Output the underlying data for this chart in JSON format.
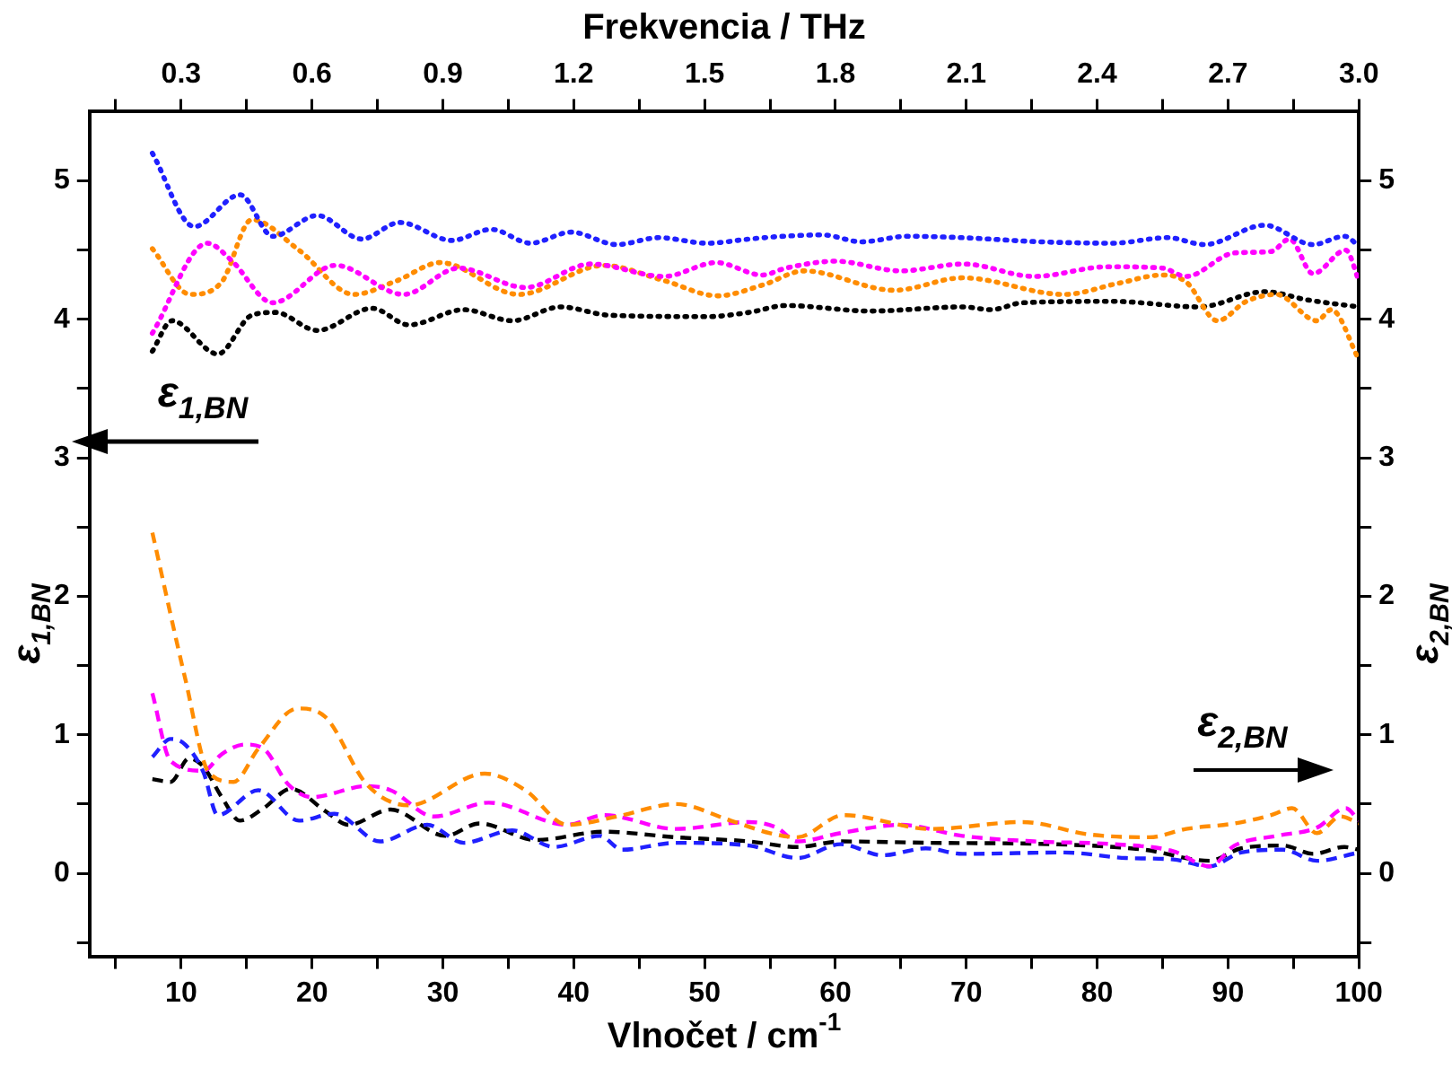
{
  "chart_data": {
    "type": "line",
    "xlabel": "Vlnočet / cm$^{-1}$",
    "x2label": "Frekvencia / THz",
    "ylabel": "ε$_{1,BN}$",
    "y2label": "ε$_{2,BN}$",
    "annotations": [
      "ε$_{1,BN}$",
      "ε$_{2,BN}$"
    ],
    "xlim": [
      3,
      100
    ],
    "xticks": [
      {
        "value": 5,
        "label": null
      },
      10,
      {
        "value": 15,
        "label": null
      },
      20,
      {
        "value": 25,
        "label": null
      },
      30,
      {
        "value": 35,
        "label": null
      },
      40,
      {
        "value": 45,
        "label": null
      },
      50,
      {
        "value": 55,
        "label": null
      },
      60,
      {
        "value": 65,
        "label": null
      },
      70,
      {
        "value": 75,
        "label": null
      },
      80,
      {
        "value": 85,
        "label": null
      },
      90,
      {
        "value": 95,
        "label": null
      },
      100
    ],
    "x2lim": [
      0.09,
      3.0
    ],
    "x2ticks": [
      {
        "value": 0.15,
        "label": null
      },
      0.3,
      {
        "value": 0.45,
        "label": null
      },
      0.6,
      {
        "value": 0.75,
        "label": null
      },
      0.9,
      {
        "value": 1.05,
        "label": null
      },
      1.2,
      {
        "value": 1.35,
        "label": null
      },
      1.5,
      {
        "value": 1.65,
        "label": null
      },
      1.8,
      {
        "value": 1.95,
        "label": null
      },
      2.1,
      {
        "value": 2.25,
        "label": null
      },
      2.4,
      {
        "value": 2.55,
        "label": null
      },
      2.7,
      {
        "value": 2.85,
        "label": null
      },
      {
        "value": 3,
        "label": "3.0"
      }
    ],
    "ylim": [
      -0.6,
      5.5
    ],
    "yticks": [
      {
        "value": -0.5,
        "label": null
      },
      0,
      {
        "value": 0.5,
        "label": null
      },
      1,
      {
        "value": 1.5,
        "label": null
      },
      2,
      {
        "value": 2.5,
        "label": null
      },
      3,
      {
        "value": 3.5,
        "label": null
      },
      4,
      {
        "value": 4.5,
        "label": null
      },
      5
    ],
    "y2lim": [
      -0.6,
      5.5
    ],
    "y2ticks": [
      {
        "value": -0.5,
        "label": null
      },
      0,
      {
        "value": 0.5,
        "label": null
      },
      1,
      {
        "value": 1.5,
        "label": null
      },
      2,
      {
        "value": 2.5,
        "label": null
      },
      3,
      {
        "value": 3.5,
        "label": null
      },
      4,
      {
        "value": 4.5,
        "label": null
      },
      5
    ],
    "grid": false,
    "legend": false,
    "marker": "none",
    "series": [
      {
        "color": "#2020ff",
        "line_style": "dotted",
        "x": [
          7.8,
          11,
          14.5,
          17,
          20.4,
          23.8,
          26.7,
          30.7,
          33.7,
          36.7,
          39.8,
          43.3,
          46.5,
          50.2,
          53.4,
          56,
          59,
          62,
          65.5,
          69.7,
          75.7,
          81.2,
          85.4,
          88.2,
          92.8,
          96.5,
          98.9,
          100
        ],
        "values": [
          5.2,
          4.67,
          4.9,
          4.6,
          4.75,
          4.58,
          4.7,
          4.57,
          4.65,
          4.55,
          4.63,
          4.54,
          4.59,
          4.55,
          4.58,
          4.6,
          4.61,
          4.56,
          4.6,
          4.59,
          4.56,
          4.55,
          4.59,
          4.54,
          4.68,
          4.54,
          4.6,
          4.53
        ]
      },
      {
        "color": "#ff00ff",
        "line_style": "dotted",
        "x": [
          7.8,
          12,
          13.8,
          17,
          21.8,
          27,
          31.2,
          36.3,
          41.3,
          46.9,
          50.9,
          54.4,
          56.2,
          60,
          65,
          69.8,
          75.2,
          80.8,
          85,
          86.8,
          90.5,
          93.3,
          94.7,
          96.5,
          99,
          100
        ],
        "values": [
          3.9,
          4.55,
          4.43,
          4.12,
          4.39,
          4.18,
          4.37,
          4.23,
          4.4,
          4.31,
          4.41,
          4.32,
          4.37,
          4.42,
          4.35,
          4.4,
          4.31,
          4.38,
          4.37,
          4.31,
          4.48,
          4.49,
          4.58,
          4.33,
          4.5,
          4.28
        ]
      },
      {
        "color": "#ff8c00",
        "line_style": "dotted",
        "x": [
          7.8,
          10.7,
          13.1,
          15.4,
          19,
          23.2,
          26.5,
          29.8,
          35.8,
          42.3,
          46.9,
          51,
          54.5,
          57.6,
          64.5,
          69.7,
          77.5,
          81.6,
          85,
          86.8,
          89.2,
          91.4,
          93.7,
          96.8,
          97.9,
          100
        ],
        "values": [
          4.51,
          4.18,
          4.27,
          4.72,
          4.5,
          4.18,
          4.28,
          4.41,
          4.18,
          4.39,
          4.28,
          4.17,
          4.25,
          4.35,
          4.21,
          4.3,
          4.18,
          4.26,
          4.32,
          4.27,
          3.99,
          4.13,
          4.18,
          3.99,
          4.07,
          3.71
        ]
      },
      {
        "color": "#000000",
        "line_style": "dotted",
        "x": [
          7.8,
          9.3,
          12.8,
          15.4,
          17.2,
          20.4,
          24.6,
          27.4,
          31.6,
          35.3,
          39,
          42.7,
          50.2,
          53.4,
          56.2,
          62.7,
          69.7,
          71.9,
          74.3,
          81.2,
          87.8,
          92.8,
          96.1,
          100
        ],
        "values": [
          3.77,
          3.99,
          3.75,
          4.03,
          4.05,
          3.92,
          4.08,
          3.96,
          4.07,
          3.99,
          4.09,
          4.03,
          4.02,
          4.05,
          4.1,
          4.06,
          4.09,
          4.07,
          4.12,
          4.13,
          4.09,
          4.2,
          4.14,
          4.09
        ]
      },
      {
        "color": "#ff8c00",
        "line_style": "dashed",
        "axis": "y2",
        "x": [
          7.8,
          10.3,
          12.1,
          14,
          15.9,
          18.9,
          21,
          24.2,
          27.4,
          33.2,
          36.3,
          39.5,
          43.3,
          47.8,
          52,
          55,
          57.1,
          60.6,
          67.3,
          74.3,
          79.4,
          84,
          86.8,
          90.5,
          93.3,
          94.9,
          96.8,
          98.6,
          100
        ],
        "values": [
          2.46,
          1.41,
          0.73,
          0.66,
          0.9,
          1.19,
          1.13,
          0.64,
          0.49,
          0.72,
          0.6,
          0.35,
          0.41,
          0.5,
          0.38,
          0.29,
          0.26,
          0.42,
          0.32,
          0.37,
          0.28,
          0.26,
          0.32,
          0.36,
          0.42,
          0.47,
          0.29,
          0.41,
          0.36
        ]
      },
      {
        "color": "#ff00ff",
        "line_style": "dashed",
        "axis": "y2",
        "x": [
          7.8,
          9.2,
          11.7,
          13.1,
          14.9,
          16.3,
          18.2,
          20,
          24.2,
          26,
          29.3,
          33.5,
          39.5,
          42.3,
          47.8,
          53.4,
          55.5,
          57.1,
          60.4,
          65,
          69.7,
          75.2,
          81.2,
          85.8,
          88.6,
          90.5,
          93.7,
          96.8,
          99,
          100
        ],
        "values": [
          1.3,
          0.81,
          0.74,
          0.86,
          0.93,
          0.9,
          0.64,
          0.55,
          0.63,
          0.6,
          0.41,
          0.51,
          0.35,
          0.42,
          0.32,
          0.37,
          0.33,
          0.23,
          0.29,
          0.35,
          0.27,
          0.23,
          0.21,
          0.16,
          0.05,
          0.2,
          0.27,
          0.33,
          0.47,
          0.38
        ]
      },
      {
        "color": "#2020ff",
        "line_style": "dashed",
        "axis": "y2",
        "x": [
          7.8,
          9.2,
          10.3,
          11.7,
          12.8,
          15.9,
          19,
          21.7,
          25.2,
          28.8,
          31.6,
          35.3,
          38.5,
          42,
          43.7,
          47.8,
          53.4,
          57.1,
          60.4,
          63.6,
          66.9,
          69.7,
          77.5,
          82.2,
          85.8,
          88.6,
          91,
          94.2,
          96.8,
          100
        ],
        "values": [
          0.84,
          0.97,
          0.93,
          0.73,
          0.42,
          0.6,
          0.38,
          0.43,
          0.23,
          0.35,
          0.22,
          0.31,
          0.19,
          0.27,
          0.17,
          0.22,
          0.2,
          0.11,
          0.21,
          0.13,
          0.18,
          0.14,
          0.15,
          0.11,
          0.1,
          0.05,
          0.15,
          0.17,
          0.09,
          0.15
        ]
      },
      {
        "color": "#000000",
        "line_style": "dashed",
        "axis": "y2",
        "x": [
          7.8,
          9.2,
          10.6,
          11.7,
          13.1,
          14.5,
          16.3,
          18.4,
          21,
          22.8,
          26,
          30.2,
          32.8,
          37.1,
          42.3,
          47.8,
          53.4,
          57.1,
          60.4,
          67.3,
          76.6,
          83.6,
          88.6,
          91,
          94.2,
          96.5,
          98.9,
          100
        ],
        "values": [
          0.68,
          0.66,
          0.83,
          0.77,
          0.55,
          0.38,
          0.47,
          0.61,
          0.45,
          0.35,
          0.46,
          0.27,
          0.36,
          0.24,
          0.3,
          0.26,
          0.23,
          0.19,
          0.23,
          0.22,
          0.21,
          0.17,
          0.09,
          0.18,
          0.2,
          0.14,
          0.19,
          0.17
        ]
      }
    ]
  }
}
